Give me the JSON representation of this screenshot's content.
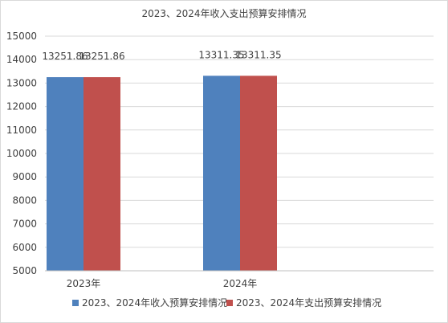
{
  "chart_data": {
    "type": "bar",
    "title": "2023、2024年收入支出预算安排情况",
    "categories": [
      "2023年",
      "2024年"
    ],
    "series": [
      {
        "name": "2023、2024年收入预算安排情况",
        "values": [
          13251.86,
          13311.35
        ],
        "labels": [
          "13251.86",
          "13311.35"
        ],
        "color": "#4f81bd"
      },
      {
        "name": "2023、2024年支出预算安排情况",
        "values": [
          13251.86,
          13311.35
        ],
        "labels": [
          "13251.86",
          "13311.35"
        ],
        "color": "#c0504d"
      }
    ],
    "ylim": [
      5000,
      15000
    ],
    "yticks": [
      "5000",
      "6000",
      "7000",
      "8000",
      "9000",
      "10000",
      "11000",
      "12000",
      "13000",
      "14000",
      "15000"
    ],
    "grid": true,
    "legend": "bottom",
    "gridline_color": "#d9d9d9",
    "axis_color": "#bfbfbf"
  }
}
